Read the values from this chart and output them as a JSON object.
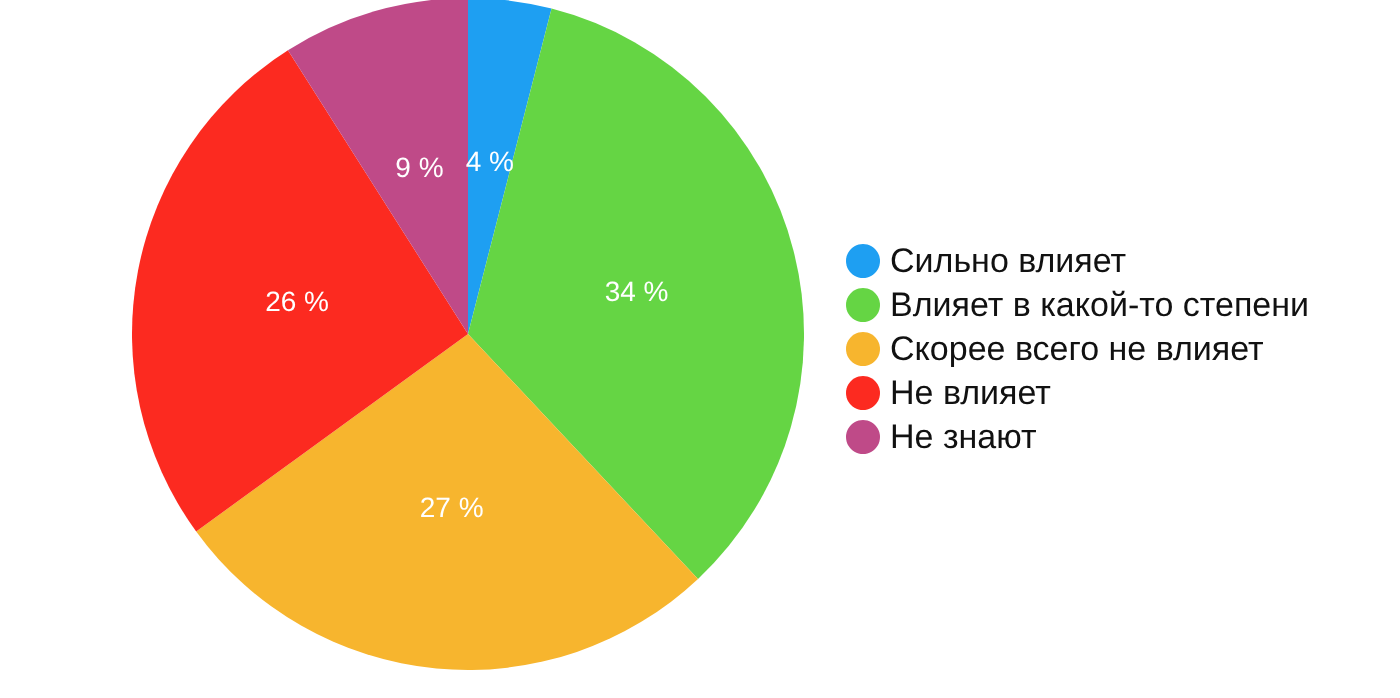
{
  "chart_data": {
    "type": "pie",
    "categories": [
      "Сильно влияет",
      "Влияет в какой-то степени",
      "Скорее всего не влияет",
      "Не влияет",
      "Не знают"
    ],
    "values": [
      4,
      34,
      27,
      26,
      9
    ],
    "colors": [
      "#1e9ff2",
      "#65d544",
      "#f7b52e",
      "#fc2a20",
      "#bf4a88"
    ],
    "value_labels": [
      "4 %",
      "34 %",
      "27 %",
      "26 %",
      "9 %"
    ],
    "legend": "right"
  }
}
